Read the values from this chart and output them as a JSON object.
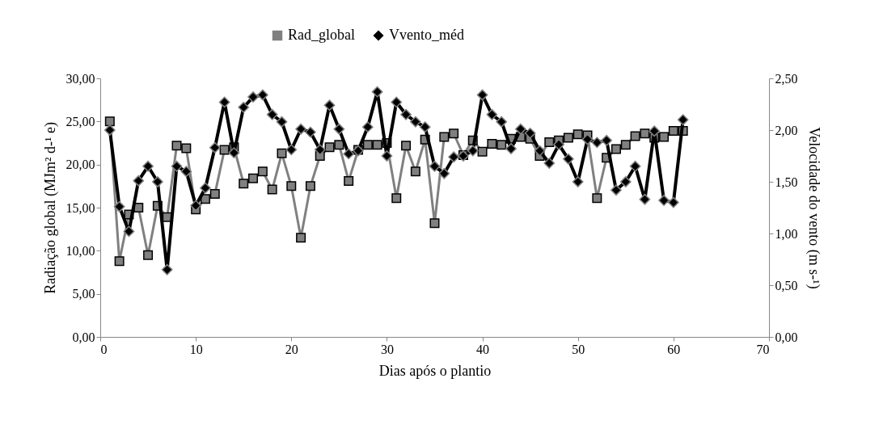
{
  "chart_data": {
    "type": "line",
    "xlabel": "Dias após o plantio",
    "ylabel": "Radiação global (MJm² d-¹ e)",
    "y2label": "Velocidade do vento (m s-¹)",
    "legend": "top",
    "grid": false,
    "x": [
      1,
      2,
      3,
      4,
      5,
      6,
      7,
      8,
      9,
      10,
      11,
      12,
      13,
      14,
      15,
      16,
      17,
      18,
      19,
      20,
      21,
      22,
      23,
      24,
      25,
      26,
      27,
      28,
      29,
      30,
      31,
      32,
      33,
      34,
      35,
      36,
      37,
      38,
      39,
      40,
      41,
      42,
      43,
      44,
      45,
      46,
      47,
      48,
      49,
      50,
      51,
      52,
      53,
      54,
      55,
      56,
      57,
      58,
      59,
      60,
      61
    ],
    "xlim": [
      0,
      70
    ],
    "xticks": [
      0,
      10,
      20,
      30,
      40,
      50,
      60,
      70
    ],
    "ylim": [
      0,
      30
    ],
    "yticks": [
      {
        "value": 0,
        "label": "0,00"
      },
      {
        "value": 5,
        "label": "5,00"
      },
      {
        "value": 10,
        "label": "10,00"
      },
      {
        "value": 15,
        "label": "15,00"
      },
      {
        "value": 20,
        "label": "20,00"
      },
      {
        "value": 25,
        "label": "25,00"
      },
      {
        "value": 30,
        "label": "30,00"
      }
    ],
    "y2lim": [
      0,
      2.5
    ],
    "y2ticks": [
      {
        "value": 0,
        "label": "0,00"
      },
      {
        "value": 0.5,
        "label": "0,50"
      },
      {
        "value": 1,
        "label": "1,00"
      },
      {
        "value": 1.5,
        "label": "1,50"
      },
      {
        "value": 2,
        "label": "2,00"
      },
      {
        "value": 2.5,
        "label": "2,50"
      }
    ],
    "series": [
      {
        "name": "Rad_global",
        "marker": "square",
        "color": "#808080",
        "values": [
          25.0,
          8.8,
          14.2,
          15.0,
          9.5,
          15.2,
          13.9,
          22.2,
          21.9,
          14.8,
          16.0,
          16.6,
          21.7,
          22.0,
          17.8,
          18.4,
          19.2,
          17.1,
          21.3,
          17.5,
          11.5,
          17.5,
          21.0,
          22.0,
          22.3,
          18.1,
          21.7,
          22.3,
          22.3,
          22.5,
          16.1,
          22.2,
          19.2,
          22.9,
          13.2,
          23.2,
          23.6,
          21.1,
          22.8,
          21.5,
          22.4,
          22.3,
          23.0,
          23.2,
          23.0,
          21.0,
          22.6,
          22.8,
          23.1,
          23.5,
          23.4,
          16.1,
          20.8,
          21.8,
          22.3,
          23.3,
          23.6,
          23.1,
          23.2,
          23.9,
          23.9
        ]
      },
      {
        "name": "Vvento_méd",
        "marker": "diamond",
        "axis": "y2",
        "color": "#000000",
        "values": [
          2.0,
          1.26,
          1.02,
          1.51,
          1.65,
          1.5,
          0.65,
          1.65,
          1.6,
          1.27,
          1.44,
          1.83,
          2.27,
          1.78,
          2.22,
          2.32,
          2.34,
          2.15,
          2.08,
          1.81,
          2.01,
          1.98,
          1.81,
          2.24,
          2.01,
          1.77,
          1.8,
          2.03,
          2.37,
          1.75,
          2.27,
          2.15,
          2.08,
          2.03,
          1.65,
          1.58,
          1.74,
          1.75,
          1.8,
          2.34,
          2.15,
          2.08,
          1.82,
          2.01,
          1.97,
          1.8,
          1.68,
          1.86,
          1.72,
          1.5,
          1.91,
          1.88,
          1.9,
          1.42,
          1.5,
          1.65,
          1.33,
          1.99,
          1.32,
          1.3,
          2.1
        ]
      }
    ]
  }
}
